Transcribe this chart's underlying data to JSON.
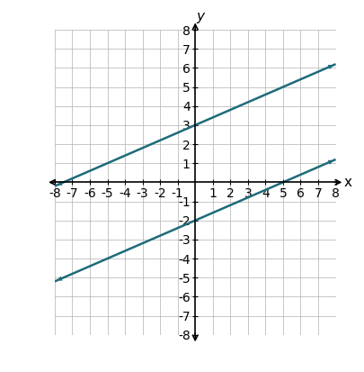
{
  "xlim": [
    -8,
    8
  ],
  "ylim": [
    -8,
    8
  ],
  "xticks": [
    -8,
    -7,
    -6,
    -5,
    -4,
    -3,
    -2,
    -1,
    1,
    2,
    3,
    4,
    5,
    6,
    7,
    8
  ],
  "yticks": [
    -8,
    -7,
    -6,
    -5,
    -4,
    -3,
    -2,
    -1,
    1,
    2,
    3,
    4,
    5,
    6,
    7,
    8
  ],
  "line1_slope": 0.4,
  "line1_intercept": 3.0,
  "line2_slope": 0.4,
  "line2_intercept": -2.0,
  "line_color": "#1e6b7a",
  "line_linewidth": 1.8,
  "xlabel": "x",
  "ylabel": "y",
  "figsize": [
    4.06,
    4.13
  ],
  "dpi": 100,
  "grid_color": "#b0b0b0",
  "grid_linewidth": 0.5,
  "axis_color": "#000000",
  "background_color": "#ffffff",
  "tick_fontsize": 8
}
